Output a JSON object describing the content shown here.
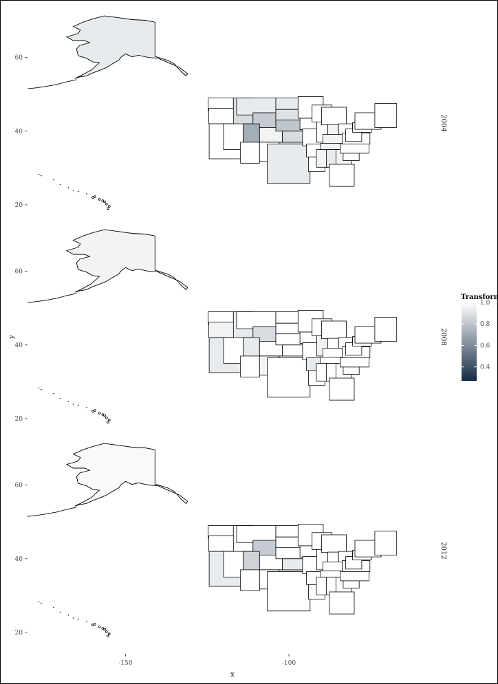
{
  "chart_data": {
    "type": "choropleth-map",
    "facet_variable": "year",
    "panels": [
      {
        "label": "2004",
        "fills": {
          "AK": 0.93,
          "HI": 1.0,
          "WA": 1.0,
          "OR": 1.0,
          "CA": 1.0,
          "NV": 1.0,
          "ID": 0.88,
          "MT": 0.93,
          "WY": 0.82,
          "UT": 0.72,
          "CO": 0.96,
          "AZ": 1.0,
          "NM": 1.0,
          "ND": 0.93,
          "SD": 0.9,
          "NE": 0.8,
          "KS": 0.88,
          "OK": 0.86,
          "TX": 0.93,
          "MN": 1.0,
          "IA": 1.0,
          "MO": 1.0,
          "AR": 1.0,
          "LA": 1.0,
          "WI": 1.0,
          "IL": 1.0,
          "MI": 1.0,
          "IN": 0.96,
          "OH": 1.0,
          "KY": 0.96,
          "TN": 0.96,
          "MS": 0.96,
          "AL": 0.93,
          "GA": 0.96,
          "FL": 1.0,
          "SC": 1.0,
          "NC": 1.0,
          "VA": 1.0,
          "WV": 1.0,
          "PA": 1.0,
          "NY": 1.0,
          "NE_states": 1.0
        }
      },
      {
        "label": "2008",
        "fills": {
          "AK": 0.96,
          "HI": 1.0,
          "WA": 1.0,
          "OR": 0.96,
          "CA": 0.93,
          "NV": 1.0,
          "ID": 0.93,
          "MT": 1.0,
          "WY": 0.88,
          "UT": 0.93,
          "CO": 1.0,
          "AZ": 1.0,
          "NM": 0.96,
          "ND": 1.0,
          "SD": 1.0,
          "NE": 1.0,
          "KS": 1.0,
          "OK": 0.96,
          "TX": 1.0,
          "MN": 1.0,
          "IA": 1.0,
          "MO": 1.0,
          "AR": 0.93,
          "LA": 1.0,
          "WI": 1.0,
          "IL": 0.96,
          "MI": 1.0,
          "IN": 1.0,
          "OH": 1.0,
          "KY": 1.0,
          "TN": 1.0,
          "MS": 1.0,
          "AL": 1.0,
          "GA": 1.0,
          "FL": 1.0,
          "SC": 1.0,
          "NC": 1.0,
          "VA": 1.0,
          "WV": 1.0,
          "PA": 1.0,
          "NY": 1.0,
          "NE_states": 1.0
        }
      },
      {
        "label": "2012",
        "fills": {
          "AK": 0.98,
          "HI": 1.0,
          "WA": 1.0,
          "OR": 1.0,
          "CA": 0.93,
          "NV": 1.0,
          "ID": 1.0,
          "MT": 1.0,
          "WY": 0.82,
          "UT": 0.85,
          "CO": 1.0,
          "AZ": 1.0,
          "NM": 1.0,
          "ND": 1.0,
          "SD": 1.0,
          "NE": 1.0,
          "KS": 0.93,
          "OK": 0.88,
          "TX": 1.0,
          "MN": 1.0,
          "IA": 1.0,
          "MO": 1.0,
          "AR": 1.0,
          "LA": 1.0,
          "WI": 1.0,
          "IL": 1.0,
          "MI": 1.0,
          "IN": 1.0,
          "OH": 1.0,
          "KY": 1.0,
          "TN": 1.0,
          "MS": 1.0,
          "AL": 1.0,
          "GA": 1.0,
          "FL": 1.0,
          "SC": 1.0,
          "NC": 1.0,
          "VA": 1.0,
          "WV": 1.0,
          "PA": 1.0,
          "NY": 1.0,
          "NE_states": 1.0
        }
      }
    ],
    "x_axis": {
      "label": "x",
      "ticks": [
        -150,
        -100
      ],
      "range": [
        -180,
        -60
      ]
    },
    "y_axis": {
      "label": "y",
      "ticks": [
        20,
        40,
        60
      ],
      "range": [
        17,
        73
      ]
    },
    "legend": {
      "title": "Transform",
      "position": "right",
      "ticks": [
        0.4,
        0.6,
        0.8,
        1.0
      ],
      "tick_labels": [
        "0.4",
        "0.6",
        "0.8",
        "1.0"
      ],
      "range": [
        0.27,
        1.0
      ],
      "color_low": "#132b43",
      "color_high": "#ffffff"
    },
    "grid": false
  }
}
